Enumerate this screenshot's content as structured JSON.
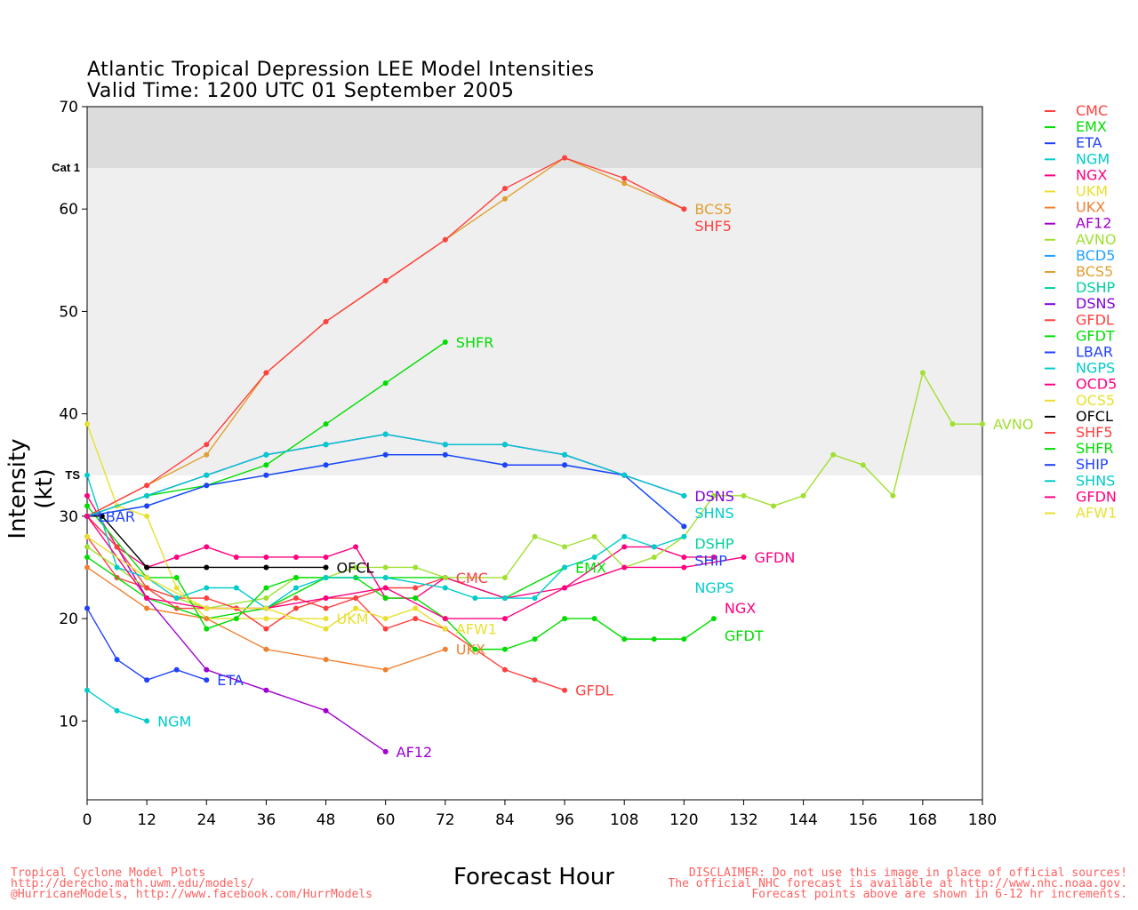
{
  "chart_data": {
    "type": "line",
    "title": "Atlantic Tropical Depression LEE Model Intensities",
    "subtitle": "Valid Time: 1200 UTC 01 September 2005",
    "xlabel": "Forecast Hour",
    "ylabel": "Intensity (kt)",
    "xlim": [
      0,
      180
    ],
    "ylim": [
      2.3,
      70
    ],
    "xticks": [
      0,
      12,
      24,
      36,
      48,
      60,
      72,
      84,
      96,
      108,
      120,
      132,
      144,
      156,
      168,
      180
    ],
    "yticks": [
      10,
      20,
      30,
      40,
      50,
      60,
      70
    ],
    "bands": [
      {
        "label": "Cat 1",
        "from": 64,
        "to": 70,
        "color": "#dcdcdc"
      },
      {
        "label": "TS",
        "from": 34,
        "to": 64,
        "color": "#efefef"
      }
    ],
    "legend_position": "right",
    "series": [
      {
        "name": "CMC",
        "color": "#ff4040",
        "label": true,
        "x": [
          0,
          6,
          12,
          18,
          24,
          30,
          36,
          42,
          48,
          54,
          60,
          66,
          72
        ],
        "y": [
          28,
          24,
          23,
          21,
          21,
          21,
          21,
          22,
          21,
          22,
          23,
          23,
          24
        ]
      },
      {
        "name": "EMX",
        "color": "#00dd00",
        "label": true,
        "x": [
          0,
          12,
          24,
          36,
          48,
          60,
          72,
          84,
          96
        ],
        "y": [
          26,
          22,
          20,
          21,
          24,
          24,
          24,
          22,
          25
        ]
      },
      {
        "name": "ETA",
        "color": "#2040ff",
        "label": true,
        "x": [
          0,
          6,
          12,
          18,
          24
        ],
        "y": [
          21,
          16,
          14,
          15,
          14
        ]
      },
      {
        "name": "NGM",
        "color": "#00cccc",
        "label": true,
        "x": [
          0,
          6,
          12
        ],
        "y": [
          13,
          11,
          10
        ]
      },
      {
        "name": "NGX",
        "color": "#ff0080",
        "label": true,
        "x": [
          0,
          6,
          12,
          18,
          24,
          30,
          36,
          42,
          48,
          54,
          60,
          66,
          72,
          84,
          96,
          108,
          114,
          120,
          126
        ],
        "y": [
          32,
          27,
          25,
          26,
          27,
          26,
          26,
          26,
          26,
          27,
          22,
          22,
          24,
          22,
          23,
          27,
          27,
          26,
          26
        ]
      },
      {
        "name": "UKM",
        "color": "#e8e030",
        "label": true,
        "x": [
          0,
          6,
          12,
          18,
          24,
          36,
          48
        ],
        "y": [
          39,
          31,
          30,
          23,
          20,
          20,
          20
        ]
      },
      {
        "name": "UKX",
        "color": "#f08030",
        "label": true,
        "x": [
          0,
          12,
          24,
          36,
          48,
          60,
          72
        ],
        "y": [
          25,
          21,
          20,
          17,
          16,
          15,
          17
        ]
      },
      {
        "name": "AF12",
        "color": "#a000d0",
        "label": true,
        "x": [
          0,
          6,
          12,
          24,
          36,
          48,
          60
        ],
        "y": [
          30,
          27,
          22,
          15,
          13,
          11,
          7
        ]
      },
      {
        "name": "AVNO",
        "color": "#a0e030",
        "label": true,
        "x": [
          0,
          12,
          24,
          36,
          42,
          48,
          54,
          60,
          66,
          72,
          84,
          90,
          96,
          102,
          108,
          114,
          120,
          126,
          132,
          138,
          144,
          150,
          156,
          162,
          168,
          174,
          180
        ],
        "y": [
          27,
          23,
          21,
          22,
          24,
          24,
          25,
          25,
          25,
          24,
          24,
          28,
          27,
          28,
          25,
          26,
          28,
          32,
          32,
          31,
          32,
          36,
          35,
          32,
          44,
          39,
          39
        ]
      },
      {
        "name": "BCD5",
        "color": "#20a0ff",
        "label": false,
        "x": [
          0,
          12,
          24,
          36,
          48,
          60,
          72,
          84,
          96,
          108,
          120
        ],
        "y": [
          30,
          32,
          34,
          36,
          37,
          38,
          37,
          37,
          36,
          34,
          32
        ]
      },
      {
        "name": "BCS5",
        "color": "#e0a030",
        "label": true,
        "x": [
          0,
          12,
          24,
          36,
          48,
          60,
          72,
          84,
          96,
          108,
          120
        ],
        "y": [
          30,
          33,
          36,
          44,
          49,
          53,
          57,
          61,
          65,
          62.5,
          60
        ]
      },
      {
        "name": "DSHP",
        "color": "#00d0a0",
        "label": true,
        "x": [
          0,
          12,
          24,
          36,
          48,
          60,
          72,
          84,
          96,
          108,
          120
        ],
        "y": [
          30,
          31,
          33,
          34,
          35,
          36,
          36,
          35,
          35,
          34,
          29
        ]
      },
      {
        "name": "DSNS",
        "color": "#8000e0",
        "label": true,
        "x": [
          0,
          12,
          24,
          36,
          48,
          60,
          72,
          84,
          96,
          108,
          120
        ],
        "y": [
          30,
          32,
          34,
          36,
          37,
          38,
          37,
          37,
          36,
          34,
          32
        ]
      },
      {
        "name": "GFDL",
        "color": "#ff4040",
        "label": true,
        "x": [
          0,
          6,
          12,
          18,
          24,
          30,
          36,
          42,
          48,
          54,
          60,
          66,
          72,
          84,
          90,
          96
        ],
        "y": [
          30,
          27,
          23,
          22,
          22,
          21,
          19,
          21,
          22,
          22,
          19,
          20,
          19,
          15,
          14,
          13
        ]
      },
      {
        "name": "GFDT",
        "color": "#00dd00",
        "label": true,
        "x": [
          0,
          12,
          18,
          24,
          30,
          36,
          42,
          48,
          54,
          60,
          66,
          72,
          78,
          84,
          90,
          96,
          102,
          108,
          114,
          120,
          126
        ],
        "y": [
          31,
          24,
          24,
          19,
          20,
          23,
          24,
          24,
          24,
          22,
          22,
          20,
          17,
          17,
          18,
          20,
          20,
          18,
          18,
          18,
          20
        ]
      },
      {
        "name": "LBAR",
        "color": "#2040ff",
        "label": true,
        "x": [
          0
        ],
        "y": [
          30
        ]
      },
      {
        "name": "NGPS",
        "color": "#00cccc",
        "label": true,
        "x": [
          0,
          6,
          12,
          18,
          24,
          30,
          36,
          42,
          48,
          60,
          72,
          78,
          84,
          90,
          96,
          102,
          108,
          114,
          120
        ],
        "y": [
          34,
          25,
          24,
          22,
          23,
          23,
          21,
          23,
          24,
          24,
          23,
          22,
          22,
          22,
          25,
          26,
          28,
          27,
          28
        ]
      },
      {
        "name": "OCD5",
        "color": "#ff0080",
        "label": false,
        "x": [],
        "y": []
      },
      {
        "name": "OCS5",
        "color": "#e8e030",
        "label": false,
        "x": [],
        "y": []
      },
      {
        "name": "OFCL",
        "color": "#000000",
        "label": true,
        "x": [
          0,
          3,
          12,
          24,
          36,
          48
        ],
        "y": [
          30,
          30,
          25,
          25,
          25,
          25
        ]
      },
      {
        "name": "SHF5",
        "color": "#ff4040",
        "label": true,
        "x": [
          0,
          12,
          24,
          36,
          48,
          60,
          72,
          84,
          96,
          108,
          120
        ],
        "y": [
          30,
          33,
          37,
          44,
          49,
          53,
          57,
          62,
          65,
          63,
          60
        ]
      },
      {
        "name": "SHFR",
        "color": "#00dd00",
        "label": true,
        "x": [
          0,
          12,
          24,
          36,
          48,
          60,
          72
        ],
        "y": [
          30,
          32,
          33,
          35,
          39,
          43,
          47
        ]
      },
      {
        "name": "SHIP",
        "color": "#2040ff",
        "label": true,
        "x": [
          0,
          12,
          24,
          36,
          48,
          60,
          72,
          84,
          96,
          108,
          120
        ],
        "y": [
          30,
          31,
          33,
          34,
          35,
          36,
          36,
          35,
          35,
          34,
          29
        ]
      },
      {
        "name": "SHNS",
        "color": "#00cccc",
        "label": true,
        "x": [
          0,
          12,
          24,
          36,
          48,
          60,
          72,
          84,
          96,
          108,
          120
        ],
        "y": [
          30,
          32,
          34,
          36,
          37,
          38,
          37,
          37,
          36,
          34,
          32
        ]
      },
      {
        "name": "GFDN",
        "color": "#ff0080",
        "label": true,
        "x": [
          0,
          12,
          24,
          36,
          48,
          60,
          72,
          84,
          96,
          108,
          120,
          132
        ],
        "y": [
          30,
          22,
          21,
          21,
          22,
          23,
          20,
          20,
          23,
          25,
          25,
          26
        ]
      },
      {
        "name": "AFW1",
        "color": "#e8e030",
        "label": true,
        "x": [
          0,
          12,
          24,
          36,
          48,
          54,
          60,
          66,
          72
        ],
        "y": [
          28,
          24,
          21,
          21,
          19,
          21,
          20,
          21,
          19
        ]
      }
    ]
  },
  "footer": {
    "left": [
      "Tropical Cyclone Model Plots",
      "http://derecho.math.uwm.edu/models/",
      "@HurricaneModels, http://www.facebook.com/HurrModels"
    ],
    "right": [
      "DISCLAIMER: Do not use this image in place of official sources!",
      "The official NHC forecast is available at http://www.nhc.noaa.gov.",
      "Forecast points above are shown in 6-12 hr increments."
    ]
  }
}
